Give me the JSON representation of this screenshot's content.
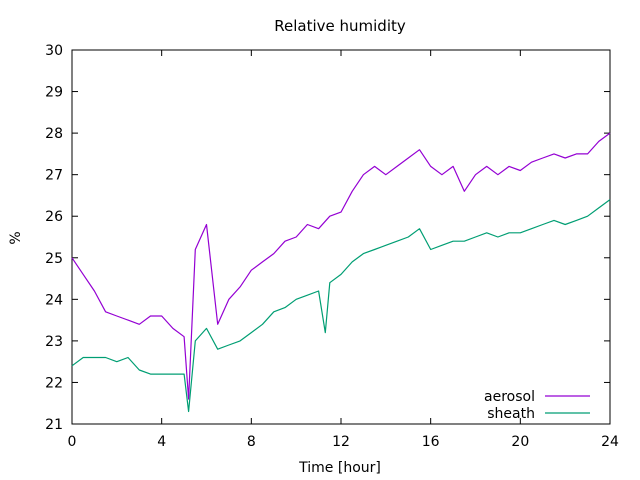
{
  "chart_data": {
    "type": "line",
    "title": "Relative humidity",
    "xlabel": "Time [hour]",
    "ylabel": "%",
    "xlim": [
      0,
      24
    ],
    "ylim": [
      21,
      30
    ],
    "xticks": [
      0,
      4,
      8,
      12,
      16,
      20,
      24
    ],
    "yticks": [
      21,
      22,
      23,
      24,
      25,
      26,
      27,
      28,
      29,
      30
    ],
    "grid": false,
    "legend_position": "bottom-right",
    "series": [
      {
        "name": "aerosol",
        "color": "#9400d3",
        "x": [
          0,
          0.5,
          1,
          1.5,
          2,
          2.5,
          3,
          3.5,
          4,
          4.5,
          5,
          5.2,
          5.5,
          6,
          6.5,
          7,
          7.5,
          8,
          8.5,
          9,
          9.5,
          10,
          10.5,
          11,
          11.5,
          12,
          12.5,
          13,
          13.5,
          14,
          14.5,
          15,
          15.5,
          16,
          16.5,
          17,
          17.5,
          18,
          18.5,
          19,
          19.5,
          20,
          20.5,
          21,
          21.5,
          22,
          22.5,
          23,
          23.5,
          24
        ],
        "values": [
          25.0,
          24.6,
          24.2,
          23.7,
          23.6,
          23.5,
          23.4,
          23.6,
          23.6,
          23.3,
          23.1,
          21.6,
          25.2,
          25.8,
          23.4,
          24.0,
          24.3,
          24.7,
          24.9,
          25.1,
          25.4,
          25.5,
          25.8,
          25.7,
          26.0,
          26.1,
          26.6,
          27.0,
          27.2,
          27.0,
          27.2,
          27.4,
          27.6,
          27.2,
          27.0,
          27.2,
          26.6,
          27.0,
          27.2,
          27.0,
          27.2,
          27.1,
          27.3,
          27.4,
          27.5,
          27.4,
          27.5,
          27.5,
          27.8,
          28.0
        ]
      },
      {
        "name": "sheath",
        "color": "#009e73",
        "x": [
          0,
          0.5,
          1,
          1.5,
          2,
          2.5,
          3,
          3.5,
          4,
          4.5,
          5,
          5.2,
          5.5,
          6,
          6.5,
          7,
          7.5,
          8,
          8.5,
          9,
          9.5,
          10,
          10.5,
          11,
          11.3,
          11.5,
          12,
          12.5,
          13,
          13.5,
          14,
          14.5,
          15,
          15.5,
          16,
          16.5,
          17,
          17.5,
          18,
          18.5,
          19,
          19.5,
          20,
          20.5,
          21,
          21.5,
          22,
          22.5,
          23,
          23.5,
          24
        ],
        "values": [
          22.4,
          22.6,
          22.6,
          22.6,
          22.5,
          22.6,
          22.3,
          22.2,
          22.2,
          22.2,
          22.2,
          21.3,
          23.0,
          23.3,
          22.8,
          22.9,
          23.0,
          23.2,
          23.4,
          23.7,
          23.8,
          24.0,
          24.1,
          24.2,
          23.2,
          24.4,
          24.6,
          24.9,
          25.1,
          25.2,
          25.3,
          25.4,
          25.5,
          25.7,
          25.2,
          25.3,
          25.4,
          25.4,
          25.5,
          25.6,
          25.5,
          25.6,
          25.6,
          25.7,
          25.8,
          25.9,
          25.8,
          25.9,
          26.0,
          26.2,
          26.4
        ]
      }
    ]
  }
}
